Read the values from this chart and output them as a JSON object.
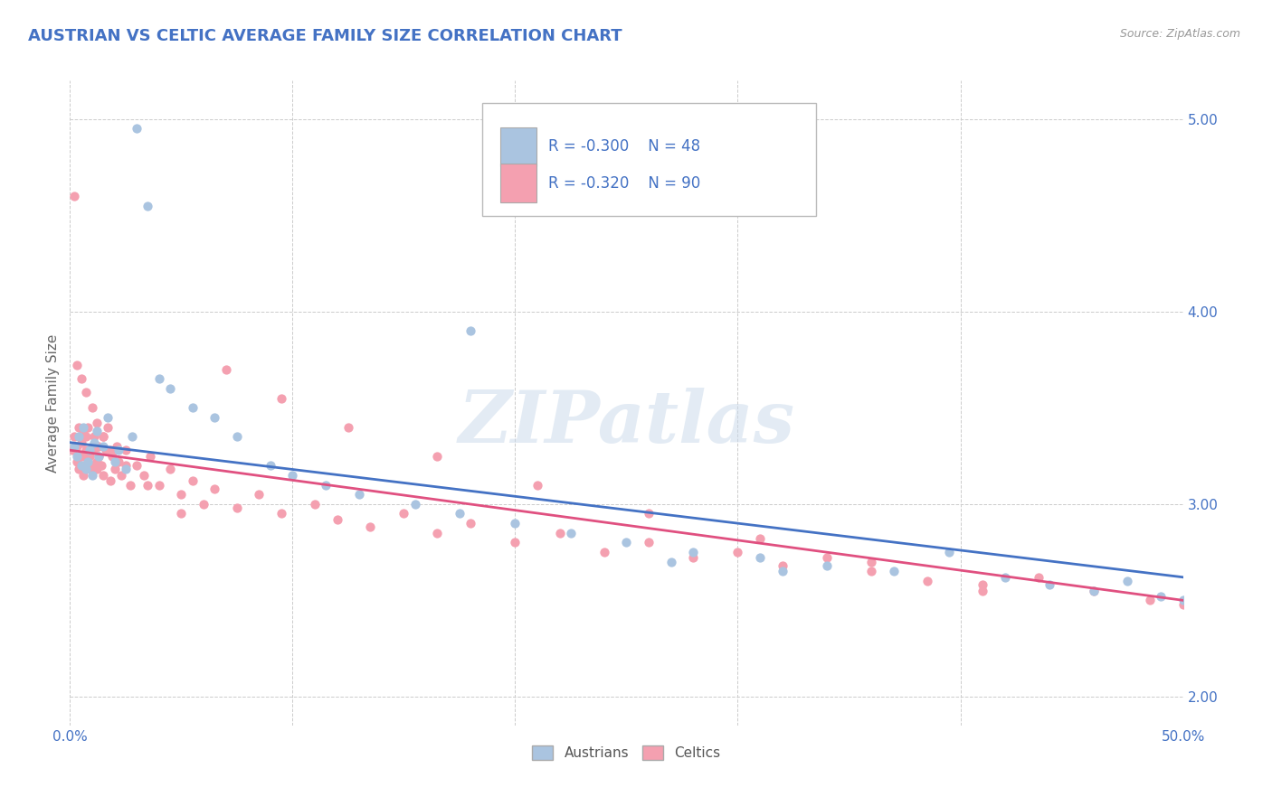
{
  "title": "AUSTRIAN VS CELTIC AVERAGE FAMILY SIZE CORRELATION CHART",
  "source": "Source: ZipAtlas.com",
  "ylabel": "Average Family Size",
  "yticks": [
    2.0,
    3.0,
    4.0,
    5.0
  ],
  "xlim": [
    0.0,
    0.5
  ],
  "ylim": [
    1.85,
    5.2
  ],
  "background_color": "#ffffff",
  "grid_color": "#cccccc",
  "austrian_color": "#aac4e0",
  "celtic_color": "#f4a0b0",
  "austrian_line_color": "#4472c4",
  "celtic_line_color": "#e05080",
  "legend_R_austrian": "R = -0.300",
  "legend_N_austrian": "N = 48",
  "legend_R_celtic": "R = -0.320",
  "legend_N_celtic": "N = 90",
  "legend_label_austrian": "Austrians",
  "legend_label_celtic": "Celtics",
  "watermark": "ZIPatlas",
  "title_color": "#4472c4",
  "axis_tick_color": "#4472c4",
  "austrian_x": [
    0.002,
    0.003,
    0.004,
    0.005,
    0.006,
    0.007,
    0.008,
    0.009,
    0.01,
    0.011,
    0.012,
    0.013,
    0.015,
    0.017,
    0.02,
    0.022,
    0.025,
    0.028,
    0.03,
    0.035,
    0.04,
    0.045,
    0.055,
    0.065,
    0.075,
    0.09,
    0.1,
    0.115,
    0.13,
    0.155,
    0.175,
    0.2,
    0.225,
    0.25,
    0.28,
    0.31,
    0.34,
    0.37,
    0.395,
    0.42,
    0.44,
    0.46,
    0.475,
    0.49,
    0.5,
    0.18,
    0.27,
    0.32
  ],
  "austrian_y": [
    3.3,
    3.25,
    3.35,
    3.2,
    3.4,
    3.18,
    3.22,
    3.28,
    3.15,
    3.32,
    3.38,
    3.25,
    3.3,
    3.45,
    3.22,
    3.28,
    3.18,
    3.35,
    4.95,
    4.55,
    3.65,
    3.6,
    3.5,
    3.45,
    3.35,
    3.2,
    3.15,
    3.1,
    3.05,
    3.0,
    2.95,
    2.9,
    2.85,
    2.8,
    2.75,
    2.72,
    2.68,
    2.65,
    2.75,
    2.62,
    2.58,
    2.55,
    2.6,
    2.52,
    2.5,
    3.9,
    2.7,
    2.65
  ],
  "celtic_x": [
    0.001,
    0.002,
    0.002,
    0.003,
    0.003,
    0.004,
    0.004,
    0.005,
    0.005,
    0.006,
    0.006,
    0.007,
    0.007,
    0.008,
    0.008,
    0.009,
    0.009,
    0.01,
    0.01,
    0.011,
    0.011,
    0.012,
    0.012,
    0.013,
    0.013,
    0.014,
    0.015,
    0.015,
    0.016,
    0.017,
    0.018,
    0.019,
    0.02,
    0.021,
    0.022,
    0.023,
    0.025,
    0.027,
    0.03,
    0.033,
    0.036,
    0.04,
    0.045,
    0.05,
    0.055,
    0.06,
    0.065,
    0.075,
    0.085,
    0.095,
    0.11,
    0.12,
    0.135,
    0.15,
    0.165,
    0.18,
    0.2,
    0.22,
    0.24,
    0.26,
    0.28,
    0.3,
    0.32,
    0.34,
    0.36,
    0.385,
    0.41,
    0.435,
    0.46,
    0.485,
    0.5,
    0.003,
    0.005,
    0.007,
    0.01,
    0.012,
    0.015,
    0.018,
    0.025,
    0.035,
    0.05,
    0.07,
    0.095,
    0.125,
    0.165,
    0.21,
    0.26,
    0.31,
    0.36,
    0.41
  ],
  "celtic_y": [
    3.28,
    3.35,
    4.6,
    3.3,
    3.22,
    3.4,
    3.18,
    3.32,
    3.25,
    3.38,
    3.15,
    3.28,
    3.35,
    3.22,
    3.4,
    3.18,
    3.25,
    3.3,
    3.2,
    3.28,
    3.35,
    3.22,
    3.18,
    3.3,
    3.25,
    3.2,
    3.35,
    3.15,
    3.28,
    3.4,
    3.12,
    3.25,
    3.18,
    3.3,
    3.22,
    3.15,
    3.28,
    3.1,
    3.2,
    3.15,
    3.25,
    3.1,
    3.18,
    3.05,
    3.12,
    3.0,
    3.08,
    2.98,
    3.05,
    2.95,
    3.0,
    2.92,
    2.88,
    2.95,
    2.85,
    2.9,
    2.8,
    2.85,
    2.75,
    2.8,
    2.72,
    2.75,
    2.68,
    2.72,
    2.65,
    2.6,
    2.55,
    2.62,
    2.55,
    2.5,
    2.48,
    3.72,
    3.65,
    3.58,
    3.5,
    3.42,
    3.35,
    3.28,
    3.2,
    3.1,
    2.95,
    3.7,
    3.55,
    3.4,
    3.25,
    3.1,
    2.95,
    2.82,
    2.7,
    2.58
  ]
}
